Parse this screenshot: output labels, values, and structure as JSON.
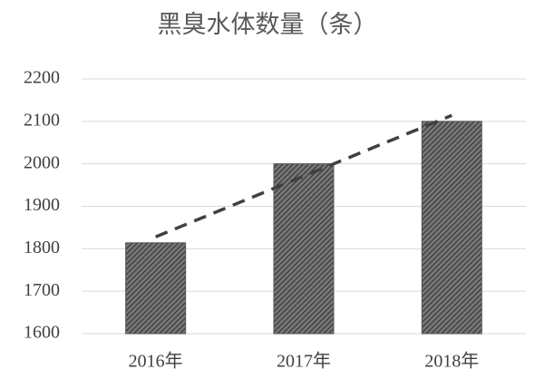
{
  "chart_data": {
    "type": "bar",
    "title": "黑臭水体数量（条）",
    "categories": [
      "2016年",
      "2017年",
      "2018年"
    ],
    "values": [
      1814,
      2000,
      2100
    ],
    "color": "#555555",
    "trendline": {
      "values": [
        1828,
        1971,
        2114
      ],
      "color": "#404040",
      "style": "dashed"
    },
    "ylim": [
      1600,
      2200
    ],
    "yticks": [
      1600,
      1700,
      1800,
      1900,
      2000,
      2100,
      2200
    ],
    "grid": true
  }
}
